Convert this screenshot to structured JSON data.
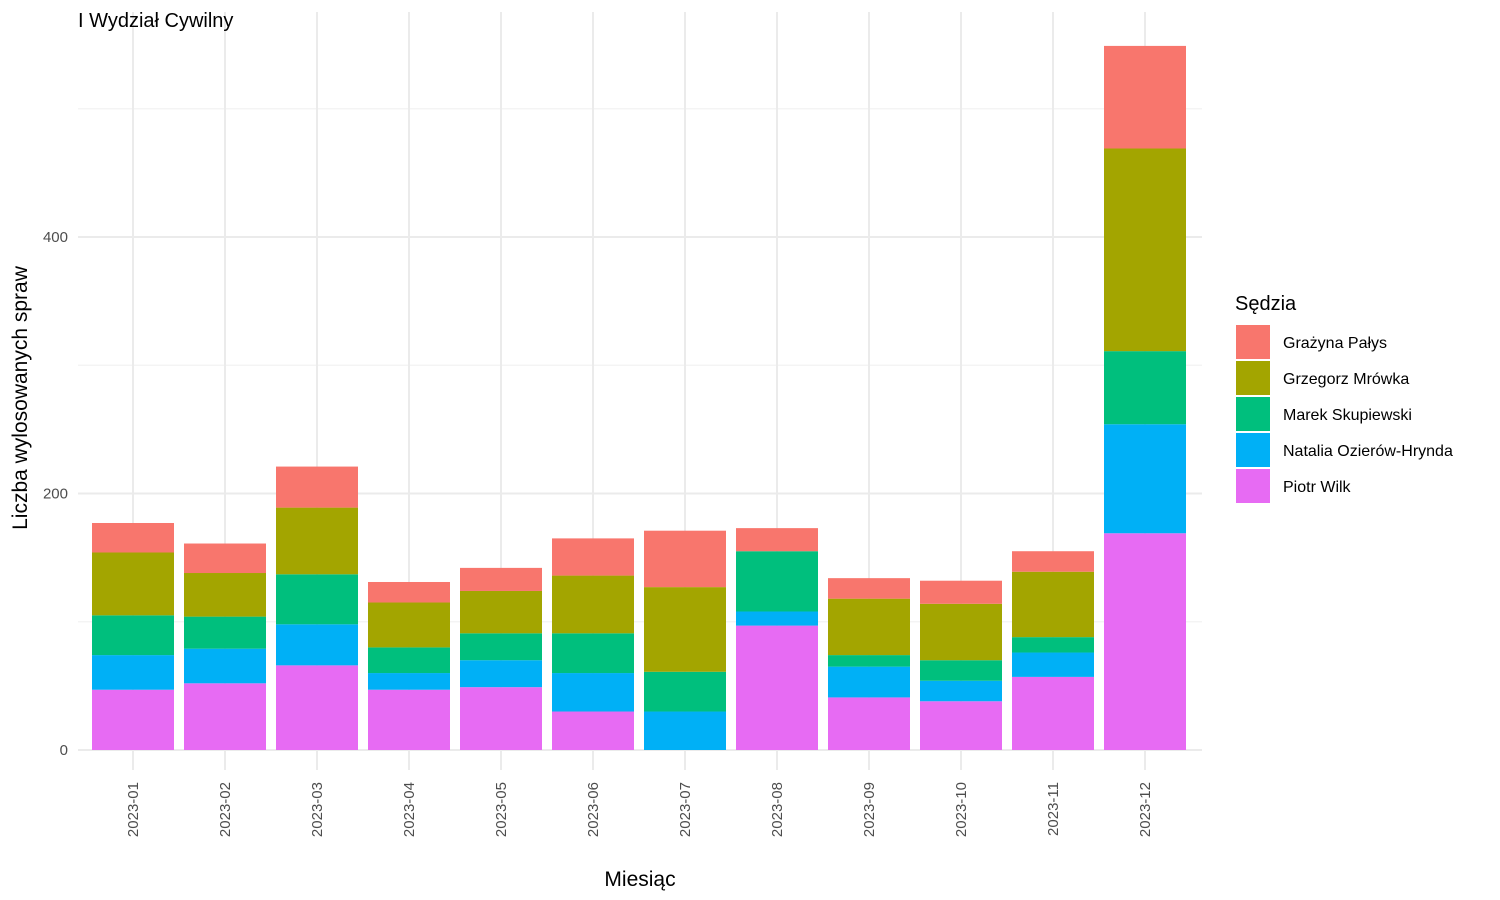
{
  "chart_data": {
    "type": "bar",
    "stacked": true,
    "title": "I Wydział Cywilny",
    "xlabel": "Miesiąc",
    "ylabel": "Liczba wylosowanych spraw",
    "ylim": [
      0,
      560
    ],
    "yticks": [
      0,
      200,
      400
    ],
    "grid": true,
    "legend": {
      "title": "Sędzia",
      "position": "right"
    },
    "categories": [
      "2023-01",
      "2023-02",
      "2023-03",
      "2023-04",
      "2023-05",
      "2023-06",
      "2023-07",
      "2023-08",
      "2023-09",
      "2023-10",
      "2023-11",
      "2023-12"
    ],
    "series": [
      {
        "name": "Piotr Wilk",
        "color": "#E76BF3",
        "values": [
          47,
          52,
          66,
          47,
          49,
          30,
          0,
          97,
          41,
          38,
          57,
          169
        ]
      },
      {
        "name": "Natalia Ozierów-Hrynda",
        "color": "#00B0F6",
        "values": [
          27,
          27,
          32,
          13,
          21,
          30,
          30,
          11,
          24,
          16,
          19,
          85
        ]
      },
      {
        "name": "Marek Skupiewski",
        "color": "#00BF7D",
        "values": [
          31,
          25,
          39,
          20,
          21,
          31,
          31,
          47,
          9,
          16,
          12,
          57
        ]
      },
      {
        "name": "Grzegorz Mrówka",
        "color": "#A3A500",
        "values": [
          49,
          34,
          52,
          35,
          33,
          45,
          66,
          0,
          44,
          44,
          51,
          158
        ]
      },
      {
        "name": "Grażyna Pałys",
        "color": "#F8766D",
        "values": [
          23,
          23,
          32,
          16,
          18,
          29,
          44,
          18,
          16,
          18,
          16,
          80
        ]
      }
    ],
    "legend_order": [
      "Grażyna Pałys",
      "Grzegorz Mrówka",
      "Marek Skupiewski",
      "Natalia Ozierów-Hrynda",
      "Piotr Wilk"
    ]
  }
}
